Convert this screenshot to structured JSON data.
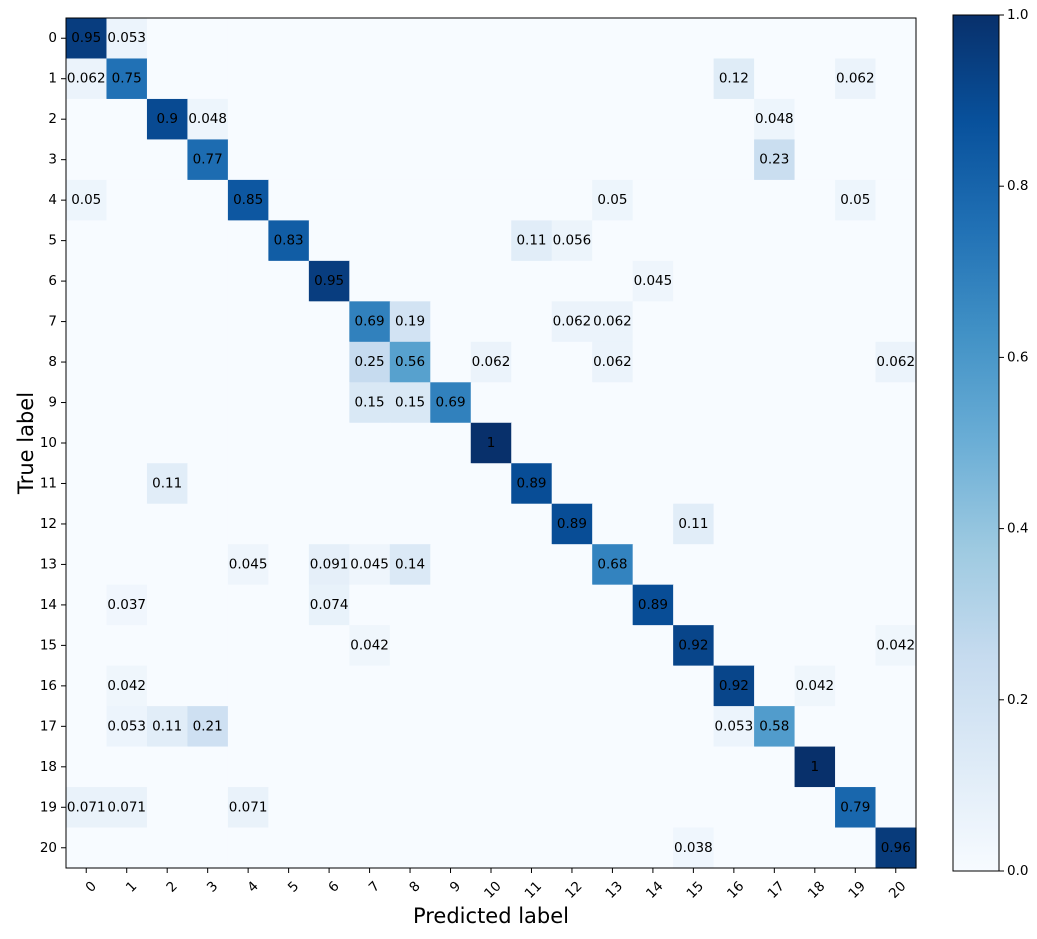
{
  "chart_data": {
    "type": "heatmap",
    "title": "",
    "xlabel": "Predicted label",
    "ylabel": "True label",
    "x_tick_labels": [
      "0",
      "1",
      "2",
      "3",
      "4",
      "5",
      "6",
      "7",
      "8",
      "9",
      "10",
      "11",
      "12",
      "13",
      "14",
      "15",
      "16",
      "17",
      "18",
      "19",
      "20"
    ],
    "y_tick_labels": [
      "0",
      "1",
      "2",
      "3",
      "4",
      "5",
      "6",
      "7",
      "8",
      "9",
      "10",
      "11",
      "12",
      "13",
      "14",
      "15",
      "16",
      "17",
      "18",
      "19",
      "20"
    ],
    "colormap": "Blues",
    "colorbar": {
      "range": [
        0.0,
        1.0
      ],
      "tick_values": [
        0.0,
        0.2,
        0.4,
        0.6,
        0.8,
        1.0
      ],
      "tick_labels": [
        "0.0",
        "0.2",
        "0.4",
        "0.6",
        "0.8",
        "1.0"
      ]
    },
    "cells": [
      {
        "row": 0,
        "col": 0,
        "value": 0.95,
        "label": "0.95"
      },
      {
        "row": 0,
        "col": 1,
        "value": 0.053,
        "label": "0.053"
      },
      {
        "row": 1,
        "col": 0,
        "value": 0.062,
        "label": "0.062"
      },
      {
        "row": 1,
        "col": 1,
        "value": 0.75,
        "label": "0.75"
      },
      {
        "row": 1,
        "col": 16,
        "value": 0.12,
        "label": "0.12"
      },
      {
        "row": 1,
        "col": 19,
        "value": 0.062,
        "label": "0.062"
      },
      {
        "row": 2,
        "col": 2,
        "value": 0.9,
        "label": "0.9"
      },
      {
        "row": 2,
        "col": 3,
        "value": 0.048,
        "label": "0.048"
      },
      {
        "row": 2,
        "col": 17,
        "value": 0.048,
        "label": "0.048"
      },
      {
        "row": 3,
        "col": 3,
        "value": 0.77,
        "label": "0.77"
      },
      {
        "row": 3,
        "col": 17,
        "value": 0.23,
        "label": "0.23"
      },
      {
        "row": 4,
        "col": 0,
        "value": 0.05,
        "label": "0.05"
      },
      {
        "row": 4,
        "col": 4,
        "value": 0.85,
        "label": "0.85"
      },
      {
        "row": 4,
        "col": 13,
        "value": 0.05,
        "label": "0.05"
      },
      {
        "row": 4,
        "col": 19,
        "value": 0.05,
        "label": "0.05"
      },
      {
        "row": 5,
        "col": 5,
        "value": 0.83,
        "label": "0.83"
      },
      {
        "row": 5,
        "col": 11,
        "value": 0.11,
        "label": "0.11"
      },
      {
        "row": 5,
        "col": 12,
        "value": 0.056,
        "label": "0.056"
      },
      {
        "row": 6,
        "col": 6,
        "value": 0.95,
        "label": "0.95"
      },
      {
        "row": 6,
        "col": 14,
        "value": 0.045,
        "label": "0.045"
      },
      {
        "row": 7,
        "col": 7,
        "value": 0.69,
        "label": "0.69"
      },
      {
        "row": 7,
        "col": 8,
        "value": 0.19,
        "label": "0.19"
      },
      {
        "row": 7,
        "col": 12,
        "value": 0.062,
        "label": "0.062"
      },
      {
        "row": 7,
        "col": 13,
        "value": 0.062,
        "label": "0.062"
      },
      {
        "row": 8,
        "col": 7,
        "value": 0.25,
        "label": "0.25"
      },
      {
        "row": 8,
        "col": 8,
        "value": 0.56,
        "label": "0.56"
      },
      {
        "row": 8,
        "col": 10,
        "value": 0.062,
        "label": "0.062"
      },
      {
        "row": 8,
        "col": 13,
        "value": 0.062,
        "label": "0.062"
      },
      {
        "row": 8,
        "col": 20,
        "value": 0.062,
        "label": "0.062"
      },
      {
        "row": 9,
        "col": 7,
        "value": 0.15,
        "label": "0.15"
      },
      {
        "row": 9,
        "col": 8,
        "value": 0.15,
        "label": "0.15"
      },
      {
        "row": 9,
        "col": 9,
        "value": 0.69,
        "label": "0.69"
      },
      {
        "row": 10,
        "col": 10,
        "value": 1.0,
        "label": "1"
      },
      {
        "row": 11,
        "col": 2,
        "value": 0.11,
        "label": "0.11"
      },
      {
        "row": 11,
        "col": 11,
        "value": 0.89,
        "label": "0.89"
      },
      {
        "row": 12,
        "col": 12,
        "value": 0.89,
        "label": "0.89"
      },
      {
        "row": 12,
        "col": 15,
        "value": 0.11,
        "label": "0.11"
      },
      {
        "row": 13,
        "col": 4,
        "value": 0.045,
        "label": "0.045"
      },
      {
        "row": 13,
        "col": 6,
        "value": 0.091,
        "label": "0.091"
      },
      {
        "row": 13,
        "col": 7,
        "value": 0.045,
        "label": "0.045"
      },
      {
        "row": 13,
        "col": 8,
        "value": 0.14,
        "label": "0.14"
      },
      {
        "row": 13,
        "col": 13,
        "value": 0.68,
        "label": "0.68"
      },
      {
        "row": 14,
        "col": 1,
        "value": 0.037,
        "label": "0.037"
      },
      {
        "row": 14,
        "col": 6,
        "value": 0.074,
        "label": "0.074"
      },
      {
        "row": 14,
        "col": 14,
        "value": 0.89,
        "label": "0.89"
      },
      {
        "row": 15,
        "col": 7,
        "value": 0.042,
        "label": "0.042"
      },
      {
        "row": 15,
        "col": 15,
        "value": 0.92,
        "label": "0.92"
      },
      {
        "row": 15,
        "col": 20,
        "value": 0.042,
        "label": "0.042"
      },
      {
        "row": 16,
        "col": 1,
        "value": 0.042,
        "label": "0.042"
      },
      {
        "row": 16,
        "col": 16,
        "value": 0.92,
        "label": "0.92"
      },
      {
        "row": 16,
        "col": 18,
        "value": 0.042,
        "label": "0.042"
      },
      {
        "row": 17,
        "col": 1,
        "value": 0.053,
        "label": "0.053"
      },
      {
        "row": 17,
        "col": 2,
        "value": 0.11,
        "label": "0.11"
      },
      {
        "row": 17,
        "col": 3,
        "value": 0.21,
        "label": "0.21"
      },
      {
        "row": 17,
        "col": 16,
        "value": 0.053,
        "label": "0.053"
      },
      {
        "row": 17,
        "col": 17,
        "value": 0.58,
        "label": "0.58"
      },
      {
        "row": 18,
        "col": 18,
        "value": 1.0,
        "label": "1"
      },
      {
        "row": 19,
        "col": 0,
        "value": 0.071,
        "label": "0.071"
      },
      {
        "row": 19,
        "col": 1,
        "value": 0.071,
        "label": "0.071"
      },
      {
        "row": 19,
        "col": 4,
        "value": 0.071,
        "label": "0.071"
      },
      {
        "row": 19,
        "col": 19,
        "value": 0.79,
        "label": "0.79"
      },
      {
        "row": 20,
        "col": 15,
        "value": 0.038,
        "label": "0.038"
      },
      {
        "row": 20,
        "col": 20,
        "value": 0.96,
        "label": "0.96"
      }
    ]
  }
}
